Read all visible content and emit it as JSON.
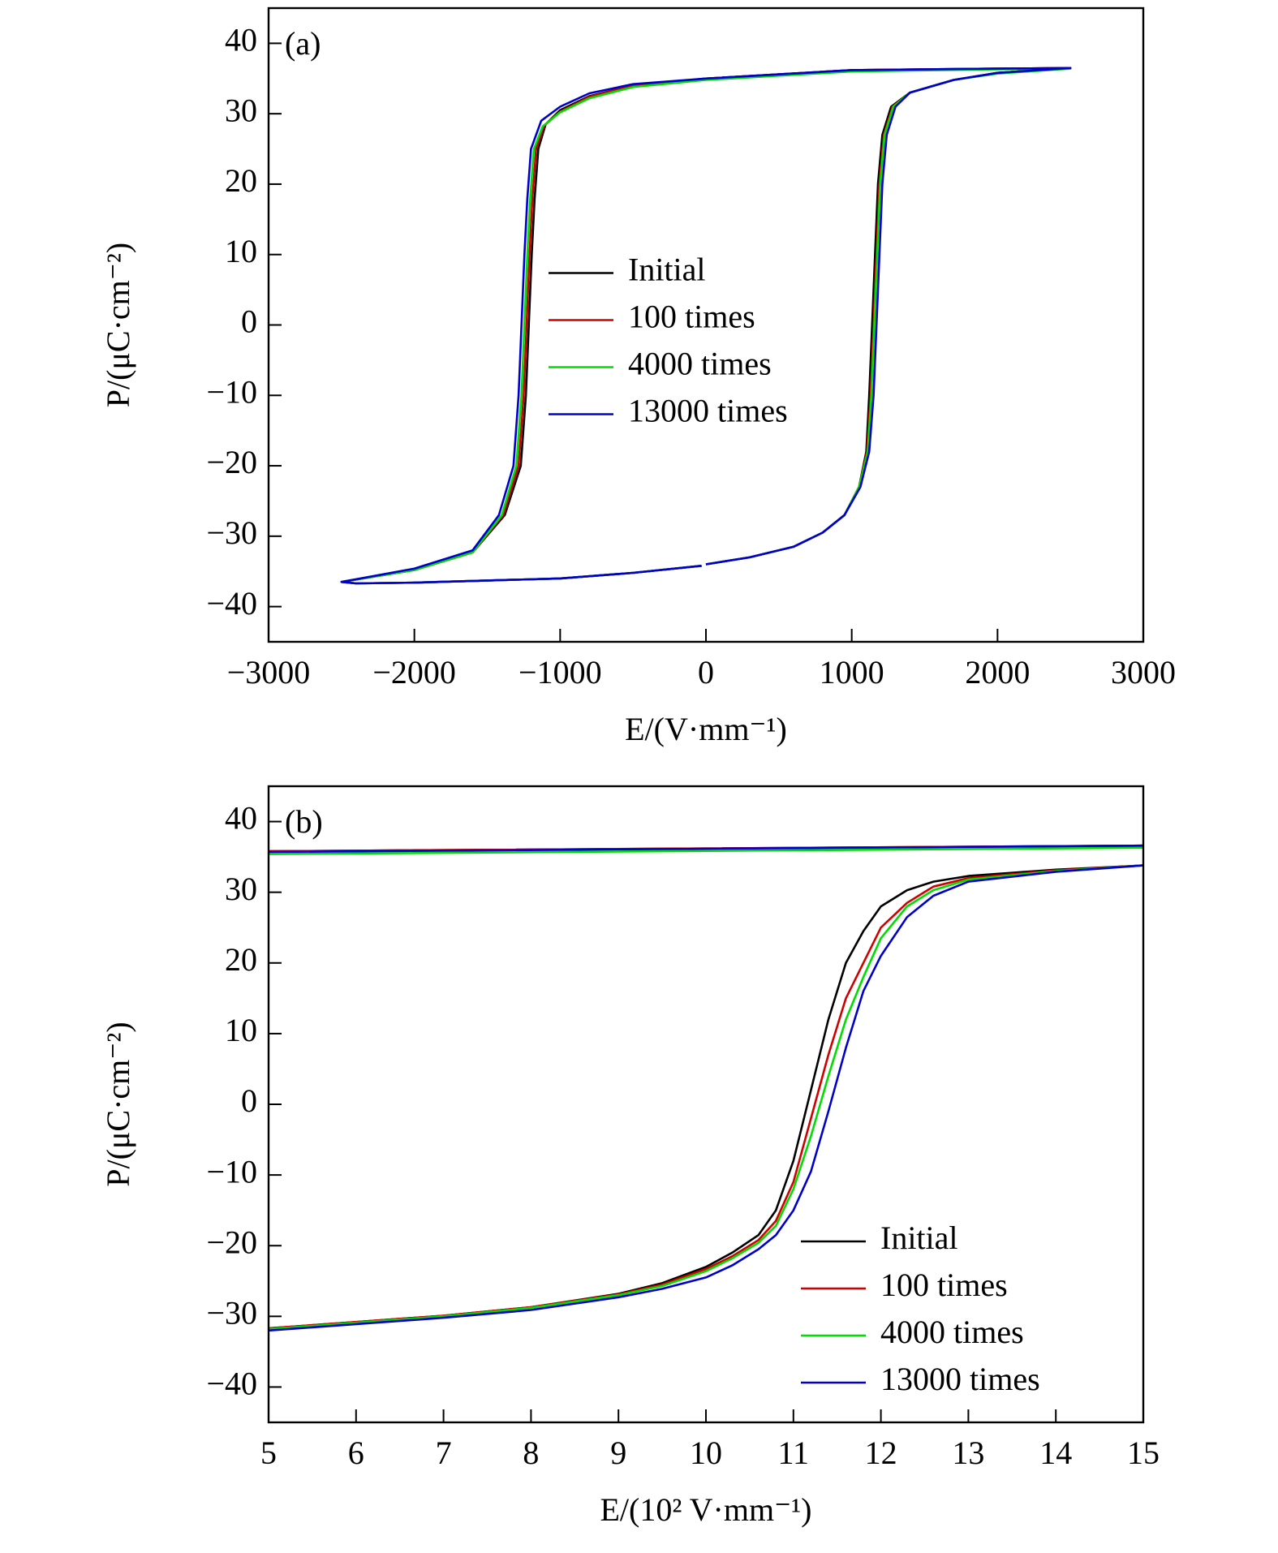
{
  "chart_data": [
    {
      "type": "line",
      "annotation": "(a)",
      "xlabel": "E/(V·mm⁻¹)",
      "ylabel": "P/(μC·cm⁻²)",
      "xlim": [
        -3000,
        3000
      ],
      "ylim": [
        -45,
        45
      ],
      "xticks": [
        {
          "value": -3000,
          "label": "−3000"
        },
        {
          "value": -2000,
          "label": "−2000"
        },
        {
          "value": -1000,
          "label": "−1000"
        },
        0,
        1000,
        2000,
        3000
      ],
      "yticks": [
        {
          "value": -40,
          "label": "−40"
        },
        {
          "value": -30,
          "label": "−30"
        },
        {
          "value": -20,
          "label": "−20"
        },
        {
          "value": -10,
          "label": "−10"
        },
        0,
        10,
        20,
        30,
        40
      ],
      "legend": "center",
      "series": [
        {
          "name": "Initial",
          "color": "#000000",
          "x": [
            0,
            300,
            600,
            800,
            950,
            1050,
            1100,
            1120,
            1140,
            1160,
            1180,
            1210,
            1270,
            1400,
            1700,
            2000,
            2500,
            2000,
            1000,
            0,
            -500,
            -800,
            -1000,
            -1100,
            -1150,
            -1175,
            -1195,
            -1215,
            -1235,
            -1270,
            -1380,
            -1600,
            -2000,
            -2500,
            -2400,
            -2000,
            -1000,
            -500,
            -30
          ],
          "values": [
            -34,
            -33,
            -31.5,
            -29.5,
            -27,
            -23,
            -18,
            -10,
            0,
            10,
            20,
            27,
            31,
            33,
            34.8,
            35.8,
            36.5,
            36.4,
            36.2,
            35,
            34,
            32.5,
            30.5,
            28.5,
            25,
            18,
            10,
            0,
            -10,
            -20,
            -27,
            -32.3,
            -34.8,
            -36.5,
            -36.7,
            -36.6,
            -36,
            -35.2,
            -34.2
          ]
        },
        {
          "name": "100 times",
          "color": "#d00000",
          "x": [
            0,
            300,
            600,
            800,
            950,
            1050,
            1105,
            1130,
            1150,
            1170,
            1190,
            1220,
            1280,
            1400,
            1700,
            2000,
            2500,
            2000,
            1000,
            0,
            -500,
            -800,
            -1000,
            -1110,
            -1165,
            -1190,
            -1210,
            -1230,
            -1250,
            -1285,
            -1390,
            -1600,
            -2000,
            -2500,
            -2400,
            -2000,
            -1000,
            -500,
            -30
          ],
          "values": [
            -34,
            -33,
            -31.5,
            -29.5,
            -27,
            -23,
            -18,
            -10,
            0,
            10,
            20,
            27,
            31,
            33,
            34.8,
            35.8,
            36.5,
            36.4,
            36.2,
            35,
            34,
            32.4,
            30.3,
            28.3,
            25,
            18,
            10,
            0,
            -10,
            -20,
            -27,
            -32.3,
            -34.8,
            -36.5,
            -36.7,
            -36.6,
            -36,
            -35.2,
            -34.2
          ]
        },
        {
          "name": "4000 times",
          "color": "#00dd00",
          "x": [
            0,
            300,
            600,
            800,
            950,
            1050,
            1110,
            1135,
            1155,
            1175,
            1195,
            1225,
            1285,
            1400,
            1700,
            2000,
            2500,
            2000,
            1000,
            0,
            -500,
            -800,
            -1000,
            -1120,
            -1180,
            -1205,
            -1225,
            -1245,
            -1265,
            -1300,
            -1400,
            -1600,
            -2000,
            -2500,
            -2400,
            -2000,
            -1000,
            -500,
            -30
          ],
          "values": [
            -34,
            -33,
            -31.5,
            -29.5,
            -27,
            -23,
            -18,
            -10,
            0,
            10,
            20,
            27,
            31,
            33,
            34.8,
            35.7,
            36.4,
            36.3,
            36,
            34.8,
            33.8,
            32.2,
            30.2,
            28.2,
            25,
            18,
            10,
            0,
            -10,
            -20,
            -27,
            -32.3,
            -34.8,
            -36.5,
            -36.7,
            -36.6,
            -36,
            -35.2,
            -34.2
          ]
        },
        {
          "name": "13000 times",
          "color": "#0000cc",
          "x": [
            0,
            300,
            600,
            800,
            950,
            1060,
            1120,
            1150,
            1170,
            1190,
            1210,
            1240,
            1300,
            1400,
            1700,
            2000,
            2500,
            2000,
            1000,
            0,
            -500,
            -800,
            -1000,
            -1130,
            -1200,
            -1225,
            -1245,
            -1265,
            -1285,
            -1320,
            -1420,
            -1600,
            -2000,
            -2500,
            -2400,
            -2000,
            -1000,
            -500,
            -30
          ],
          "values": [
            -34,
            -33,
            -31.5,
            -29.5,
            -27,
            -23,
            -18,
            -10,
            0,
            10,
            20,
            27,
            31,
            33,
            34.8,
            35.8,
            36.5,
            36.4,
            36.2,
            35,
            34.2,
            32.9,
            31,
            29,
            25,
            18,
            10,
            0,
            -10,
            -20,
            -27,
            -32,
            -34.6,
            -36.5,
            -36.7,
            -36.6,
            -36,
            -35.2,
            -34.2
          ]
        }
      ]
    },
    {
      "type": "line",
      "annotation": "(b)",
      "xlabel": "E/(10² V·mm⁻¹)",
      "ylabel": "P/(μC·cm⁻²)",
      "xlim": [
        5,
        15
      ],
      "ylim": [
        -45,
        45
      ],
      "xticks": [
        5,
        6,
        7,
        8,
        9,
        10,
        11,
        12,
        13,
        14,
        15
      ],
      "yticks": [
        {
          "value": -40,
          "label": "−40"
        },
        {
          "value": -30,
          "label": "−30"
        },
        {
          "value": -20,
          "label": "−20"
        },
        {
          "value": -10,
          "label": "−10"
        },
        0,
        10,
        20,
        30,
        40
      ],
      "legend": "lower right",
      "series": [
        {
          "name": "Initial",
          "color": "#000000",
          "x": [
            5,
            6,
            7,
            8,
            9,
            9.5,
            10,
            10.3,
            10.6,
            10.8,
            11,
            11.2,
            11.4,
            11.6,
            11.8,
            12,
            12.3,
            12.6,
            13,
            14,
            15,
            null,
            15,
            5
          ],
          "values": [
            -31.7,
            -30.8,
            -29.9,
            -28.7,
            -26.8,
            -25.3,
            -23,
            -21,
            -18.5,
            -15,
            -8,
            2,
            12,
            20,
            24.5,
            28,
            30.3,
            31.5,
            32.3,
            33.2,
            33.8,
            null,
            36.6,
            35.8
          ]
        },
        {
          "name": "100 times",
          "color": "#d00000",
          "x": [
            5,
            6,
            7,
            8,
            9,
            9.5,
            10,
            10.3,
            10.6,
            10.8,
            11,
            11.2,
            11.4,
            11.6,
            11.8,
            12,
            12.3,
            12.6,
            13,
            14,
            15,
            null,
            15,
            5
          ],
          "values": [
            -31.7,
            -30.8,
            -29.9,
            -28.7,
            -26.9,
            -25.5,
            -23.3,
            -21.5,
            -19.2,
            -16.5,
            -11,
            -2,
            7,
            15,
            20,
            25,
            28.5,
            30.8,
            32,
            33.1,
            33.8,
            null,
            36.6,
            35.8
          ]
        },
        {
          "name": "4000 times",
          "color": "#00dd00",
          "x": [
            5,
            6,
            7,
            8,
            9,
            9.5,
            10,
            10.3,
            10.6,
            10.8,
            11,
            11.2,
            11.4,
            11.6,
            11.8,
            12,
            12.3,
            12.6,
            13,
            14,
            15,
            null,
            15,
            5
          ],
          "values": [
            -31.8,
            -30.9,
            -30,
            -28.8,
            -27,
            -25.7,
            -23.6,
            -21.8,
            -19.6,
            -17.2,
            -12,
            -4.5,
            4,
            12,
            18,
            23.5,
            28,
            30.3,
            31.8,
            33,
            33.8,
            null,
            36.3,
            35.4
          ]
        },
        {
          "name": "13000 times",
          "color": "#0000cc",
          "x": [
            5,
            6,
            7,
            8,
            9,
            9.5,
            10,
            10.3,
            10.6,
            10.8,
            11,
            11.2,
            11.4,
            11.6,
            11.8,
            12,
            12.3,
            12.6,
            13,
            14,
            15,
            null,
            15,
            5
          ],
          "values": [
            -32,
            -31.1,
            -30.2,
            -29.1,
            -27.3,
            -26.1,
            -24.5,
            -22.8,
            -20.5,
            -18.5,
            -15,
            -9.5,
            -1,
            8,
            16,
            21,
            26.5,
            29.5,
            31.5,
            32.9,
            33.8,
            null,
            36.6,
            35.7
          ]
        }
      ]
    }
  ]
}
